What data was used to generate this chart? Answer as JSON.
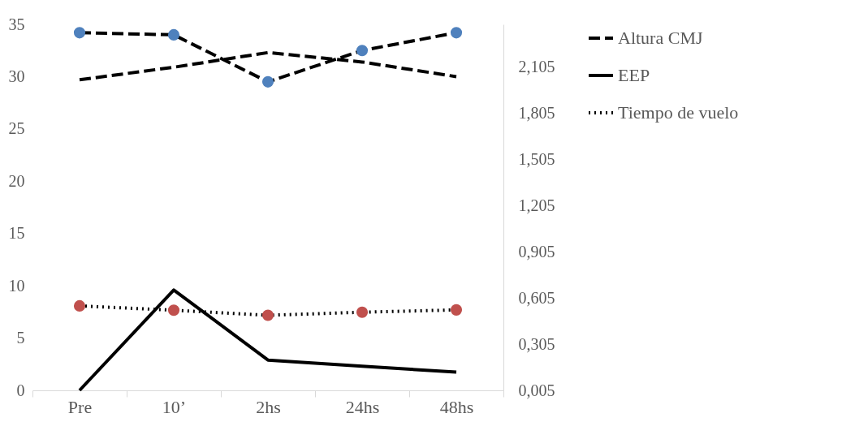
{
  "chart_data": {
    "type": "line",
    "categories": [
      "Pre",
      "10’",
      "2hs",
      "24hs",
      "48hs"
    ],
    "series": [
      {
        "name": "Altura CMJ",
        "color": "#000000",
        "colors": [
          "#4f81bd",
          "#4f81bd",
          "#4f81bd",
          "#4f81bd",
          "#4f81bd"
        ],
        "marker": "circle",
        "line_style": "dashed",
        "values": [
          34.2,
          34.0,
          29.5,
          32.5,
          34.2
        ]
      },
      {
        "name": "EEP",
        "color": "#000000",
        "line_style": "solid",
        "values": [
          0,
          9.6,
          2.9,
          2.3,
          1.75
        ]
      },
      {
        "name": "Tiempo de vuelo",
        "color": "#000000",
        "colors": [
          "#c0504d",
          "#c0504d",
          "#c0504d",
          "#c0504d",
          "#c0504d"
        ],
        "marker": "circle",
        "line_style": "dotted",
        "axis": "y2",
        "values": [
          0.553,
          0.525,
          0.492,
          0.512,
          0.527
        ]
      },
      {
        "color": "#000000",
        "line_style": "dashed",
        "values": [
          29.7,
          30.9,
          32.3,
          31.4,
          30.0
        ]
      }
    ],
    "ylim": [
      0,
      35
    ],
    "yticks": [
      0,
      5,
      10,
      15,
      20,
      25,
      30,
      35
    ],
    "y2lim": [
      0.005,
      2.38
    ],
    "y2ticks": [
      {
        "value": 0.005,
        "label": "0,005"
      },
      {
        "value": 0.305,
        "label": "0,305"
      },
      {
        "value": 0.605,
        "label": "0,605"
      },
      {
        "value": 0.905,
        "label": "0,905"
      },
      {
        "value": 1.205,
        "label": "1,205"
      },
      {
        "value": 1.505,
        "label": "1,505"
      },
      {
        "value": 1.805,
        "label": "1,805"
      },
      {
        "value": 2.105,
        "label": "2,105"
      }
    ],
    "legend": "right"
  }
}
